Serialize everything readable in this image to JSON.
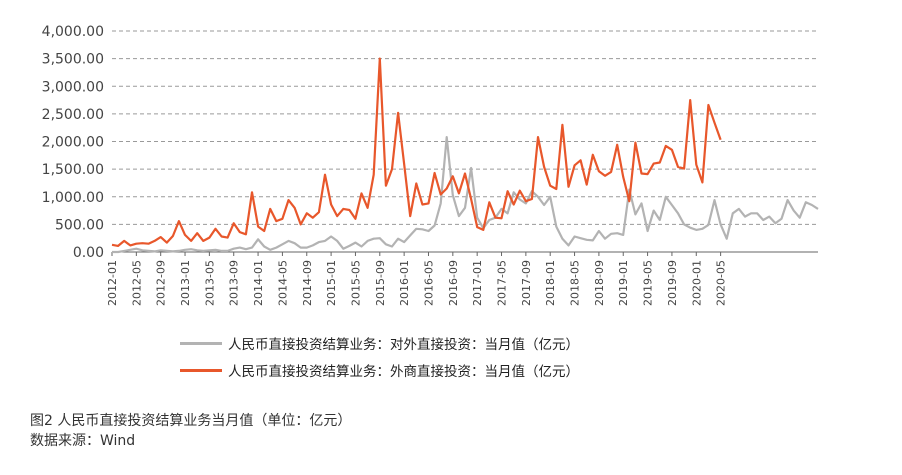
{
  "chart_data": {
    "type": "line",
    "title": "",
    "xlabel": "",
    "ylabel": "",
    "ylim": [
      0,
      4000
    ],
    "yticks": [
      0,
      500,
      1000,
      1500,
      2000,
      2500,
      3000,
      3500,
      4000
    ],
    "ytick_labels": [
      "0.00",
      "500.00",
      "1,000.00",
      "1,500.00",
      "2,000.00",
      "2,500.00",
      "3,000.00",
      "3,500.00",
      "4,000.00"
    ],
    "xtick_labels": [
      "2012-01",
      "2012-05",
      "2012-09",
      "2013-01",
      "2013-05",
      "2013-09",
      "2014-01",
      "2014-05",
      "2014-09",
      "2015-01",
      "2015-05",
      "2015-09",
      "2016-01",
      "2016-05",
      "2016-09",
      "2017-01",
      "2017-05",
      "2017-09",
      "2018-01",
      "2018-05",
      "2018-09",
      "2019-01",
      "2019-05",
      "2019-09",
      "2020-01",
      "2020-05"
    ],
    "grid": true,
    "legend_position": "bottom",
    "start_month": "2012-01",
    "series": [
      {
        "name": "人民币直接投资结算业务：对外直接投资：当月值（亿元）",
        "color": "#b3b3b3",
        "values": [
          0,
          0,
          20,
          40,
          60,
          30,
          20,
          10,
          30,
          20,
          10,
          20,
          40,
          50,
          30,
          20,
          30,
          40,
          20,
          20,
          60,
          80,
          50,
          80,
          230,
          100,
          40,
          80,
          140,
          200,
          160,
          80,
          80,
          120,
          180,
          200,
          280,
          200,
          60,
          110,
          170,
          100,
          200,
          240,
          250,
          140,
          100,
          240,
          180,
          300,
          420,
          410,
          380,
          480,
          880,
          2080,
          1030,
          650,
          800,
          1520,
          620,
          430,
          580,
          620,
          780,
          700,
          1080,
          950,
          880,
          1100,
          1000,
          850,
          1000,
          460,
          240,
          120,
          280,
          250,
          220,
          210,
          380,
          240,
          330,
          340,
          310,
          1130,
          680,
          880,
          380,
          750,
          580,
          1000,
          850,
          700,
          500,
          440,
          400,
          420,
          490,
          940,
          500,
          240,
          700,
          780,
          640,
          700,
          700,
          580,
          640,
          520,
          600,
          940,
          750,
          620,
          900,
          850,
          780
        ]
      },
      {
        "name": "人民币直接投资结算业务：外商直接投资：当月值（亿元）",
        "color": "#e8572b",
        "values": [
          130,
          110,
          200,
          120,
          150,
          160,
          150,
          200,
          270,
          170,
          290,
          560,
          310,
          200,
          340,
          200,
          260,
          420,
          280,
          260,
          520,
          360,
          320,
          1080,
          460,
          380,
          780,
          560,
          600,
          940,
          800,
          500,
          700,
          620,
          720,
          1400,
          860,
          650,
          780,
          760,
          600,
          1060,
          800,
          1400,
          3500,
          1200,
          1500,
          2520,
          1600,
          650,
          1240,
          860,
          880,
          1430,
          1040,
          1150,
          1370,
          1060,
          1420,
          960,
          450,
          400,
          900,
          620,
          610,
          1100,
          860,
          1110,
          920,
          960,
          2080,
          1540,
          1200,
          1140,
          2300,
          1180,
          1570,
          1660,
          1220,
          1760,
          1460,
          1380,
          1450,
          1940,
          1360,
          920,
          1980,
          1420,
          1410,
          1600,
          1620,
          1920,
          1850,
          1540,
          1510,
          2750,
          1580,
          1260,
          2660,
          2340,
          2030
        ]
      }
    ]
  },
  "legend": {
    "items": [
      {
        "label": "人民币直接投资结算业务：对外直接投资：当月值（亿元）",
        "color": "#b3b3b3"
      },
      {
        "label": "人民币直接投资结算业务：外商直接投资：当月值（亿元）",
        "color": "#e8572b"
      }
    ]
  },
  "caption": {
    "title": "图2  人民币直接投资结算业务当月值（单位：亿元）",
    "source": "数据来源：Wind"
  }
}
